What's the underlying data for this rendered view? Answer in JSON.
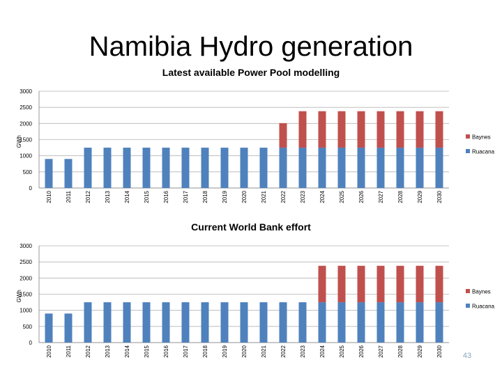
{
  "page": {
    "title": "Namibia Hydro generation",
    "page_number": "43"
  },
  "colors": {
    "ruacana": "#4f81bd",
    "baynes": "#c0504d",
    "gridline": "#b3b3b3",
    "axis": "#808080"
  },
  "chart_data": [
    {
      "type": "bar",
      "stacked": true,
      "title": "Latest available Power Pool modelling",
      "ylabel": "GWh",
      "xlabel": "",
      "ylim": [
        0,
        3000
      ],
      "yticks": [
        0,
        500,
        1000,
        1500,
        2000,
        2500,
        3000
      ],
      "grid": true,
      "legend": "right",
      "categories": [
        "2010",
        "2011",
        "2012",
        "2013",
        "2014",
        "2015",
        "2016",
        "2017",
        "2018",
        "2019",
        "2020",
        "2021",
        "2022",
        "2023",
        "2024",
        "2025",
        "2026",
        "2027",
        "2028",
        "2029",
        "2030"
      ],
      "series": [
        {
          "name": "Ruacana",
          "color": "#4f81bd",
          "values": [
            900,
            900,
            1250,
            1250,
            1250,
            1250,
            1250,
            1250,
            1250,
            1250,
            1250,
            1250,
            1250,
            1250,
            1250,
            1250,
            1250,
            1250,
            1250,
            1250,
            1250
          ]
        },
        {
          "name": "Baynes",
          "color": "#c0504d",
          "values": [
            0,
            0,
            0,
            0,
            0,
            0,
            0,
            0,
            0,
            0,
            0,
            0,
            760,
            1130,
            1130,
            1130,
            1130,
            1130,
            1130,
            1130,
            1130
          ]
        }
      ]
    },
    {
      "type": "bar",
      "stacked": true,
      "title": "Current World Bank effort",
      "ylabel": "GWh",
      "xlabel": "",
      "ylim": [
        0,
        3000
      ],
      "yticks": [
        0,
        500,
        1000,
        1500,
        2000,
        2500,
        3000
      ],
      "grid": true,
      "legend": "right",
      "categories": [
        "2010",
        "2011",
        "2012",
        "2013",
        "2014",
        "2015",
        "2016",
        "2017",
        "2018",
        "2019",
        "2020",
        "2021",
        "2022",
        "2023",
        "2024",
        "2025",
        "2026",
        "2027",
        "2028",
        "2029",
        "2030"
      ],
      "series": [
        {
          "name": "Ruacana",
          "color": "#4f81bd",
          "values": [
            900,
            900,
            1250,
            1250,
            1250,
            1250,
            1250,
            1250,
            1250,
            1250,
            1250,
            1250,
            1250,
            1250,
            1250,
            1250,
            1250,
            1250,
            1250,
            1250,
            1250
          ]
        },
        {
          "name": "Baynes",
          "color": "#c0504d",
          "values": [
            0,
            0,
            0,
            0,
            0,
            0,
            0,
            0,
            0,
            0,
            0,
            0,
            0,
            0,
            1130,
            1130,
            1130,
            1130,
            1130,
            1130,
            1130
          ]
        }
      ]
    }
  ]
}
